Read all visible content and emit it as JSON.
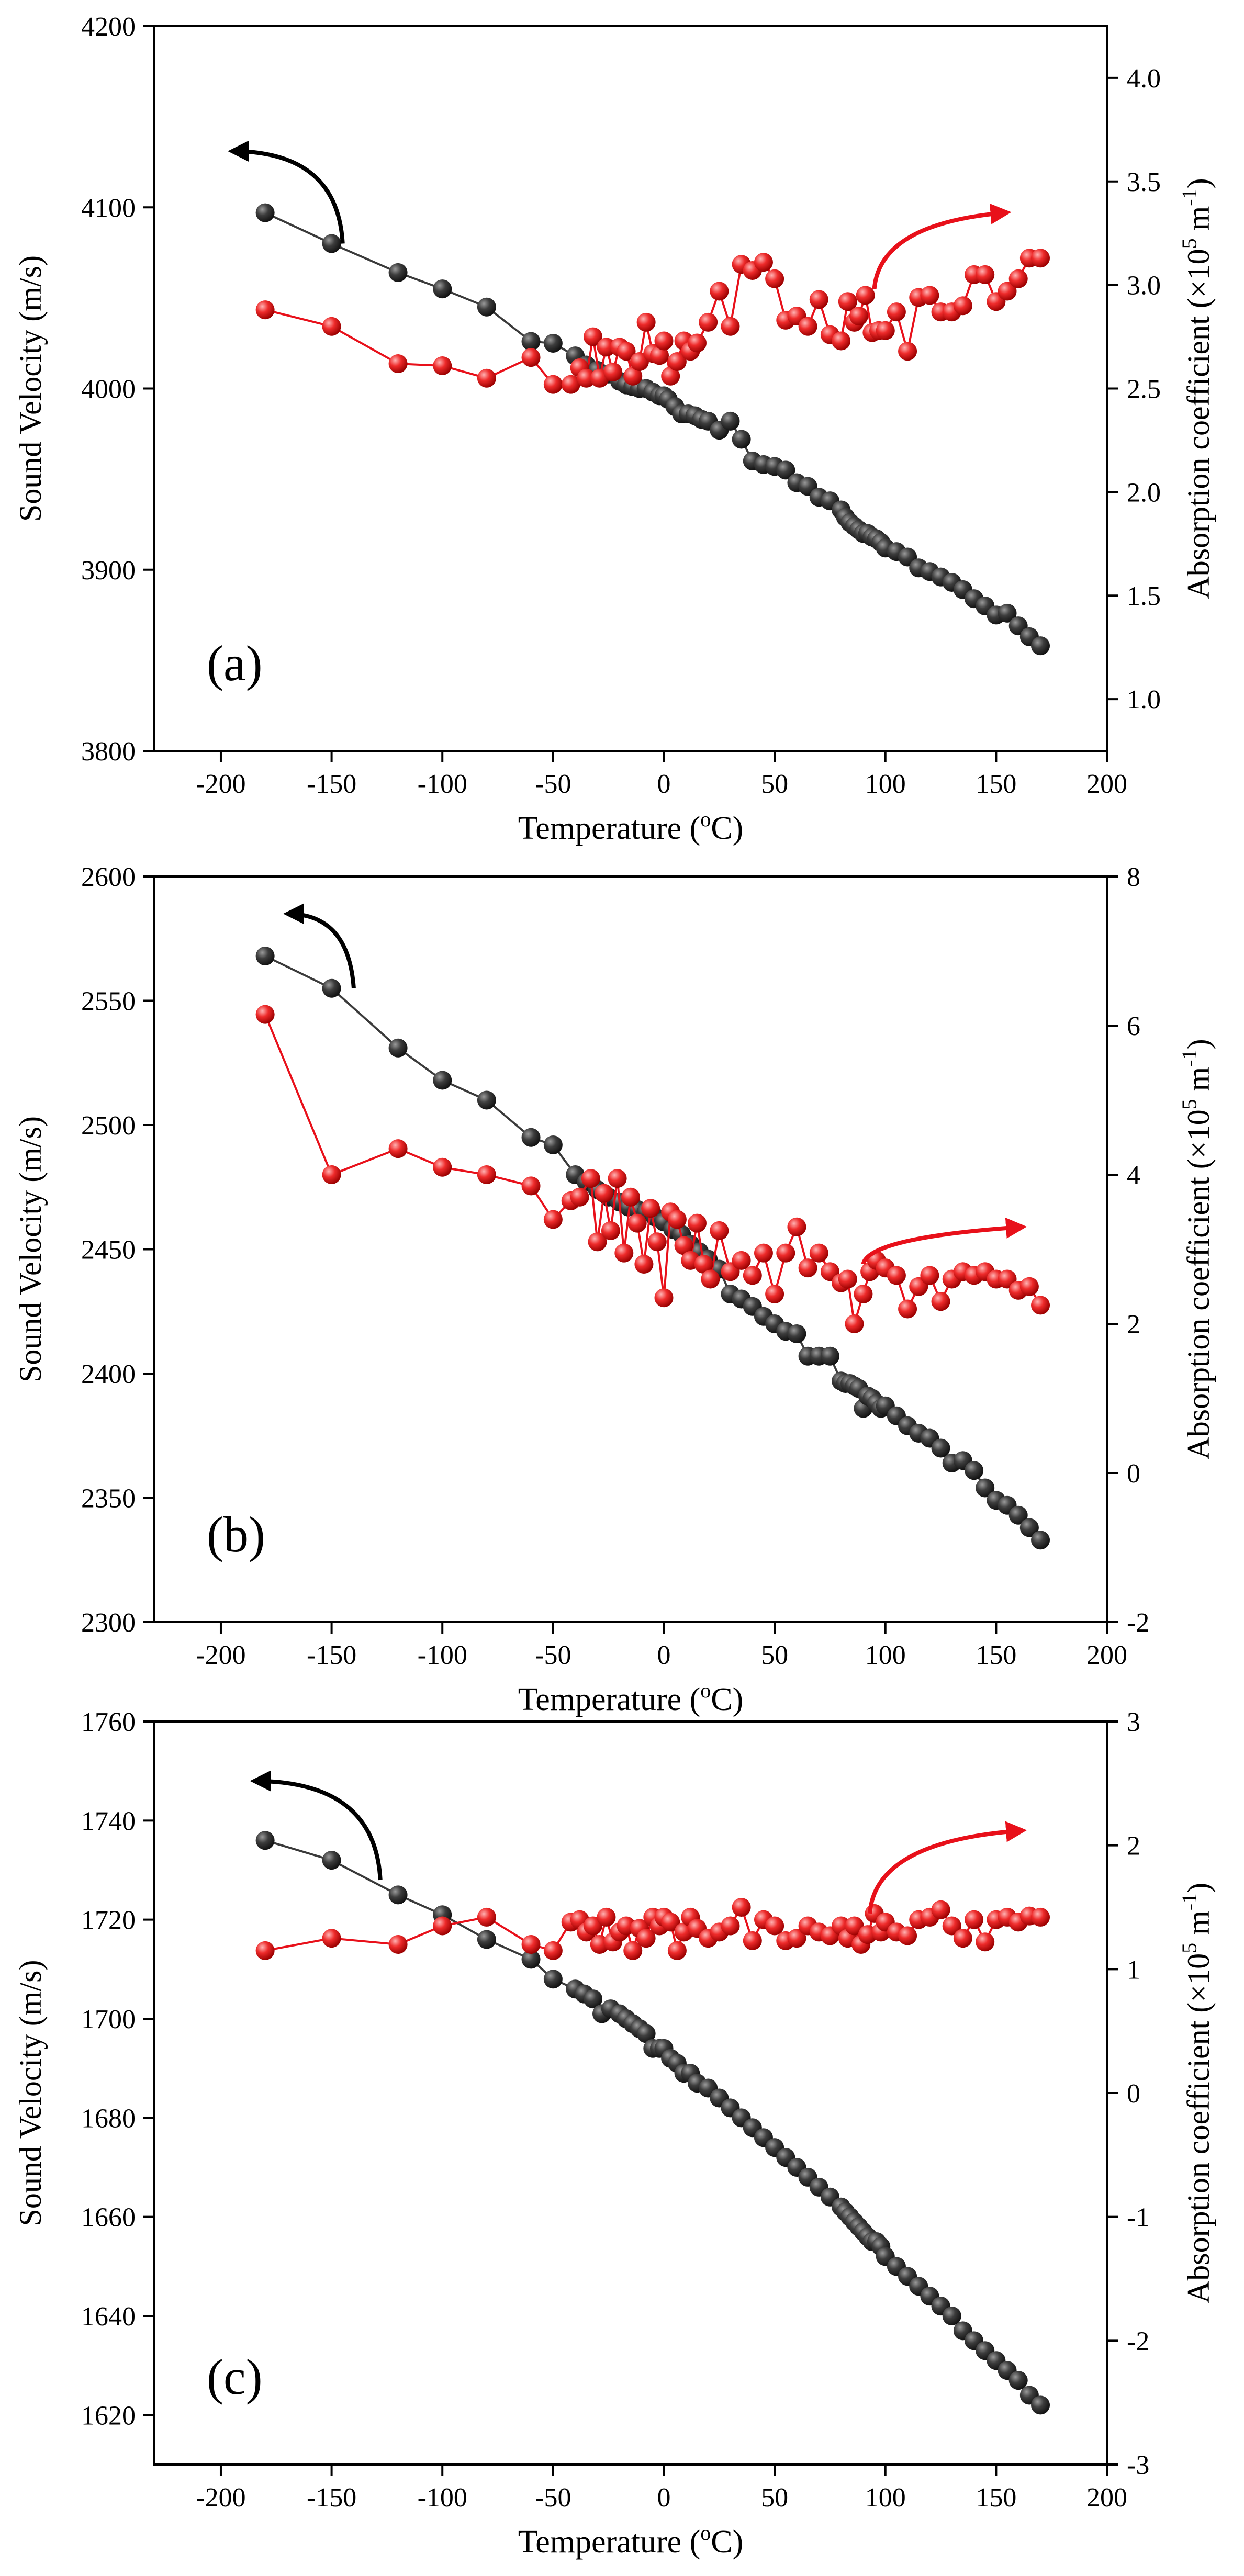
{
  "colors": {
    "velocity": "#3a3a3a",
    "absorption": "#e8101a",
    "axis": "#000000"
  },
  "chart_data": [
    {
      "type": "line",
      "panel_label": "(a)",
      "xlabel": "Temperature (",
      "xlabel_sup": "o",
      "xlabel_tail": "C)",
      "ylabel_left": "Sound Velocity (m/s)",
      "ylabel_right_pre": "Absorption coefficient (×10",
      "ylabel_right_sup1": "5",
      "ylabel_right_mid": " m",
      "ylabel_right_sup2": "-1",
      "ylabel_right_post": ")",
      "xlim": [
        -230,
        200
      ],
      "ylim_left": [
        3800,
        4200
      ],
      "ylim_right": [
        0.75,
        4.25
      ],
      "xticks": [
        -200,
        -150,
        -100,
        -50,
        0,
        50,
        100,
        150,
        200
      ],
      "yticks_left": [
        3800,
        3900,
        4000,
        4100,
        4200
      ],
      "yticks_right": [
        1.0,
        1.5,
        2.0,
        2.5,
        3.0,
        3.5,
        4.0
      ],
      "ytick_right_decimals": 1,
      "arrows": [
        {
          "series": "Sound Velocity",
          "direction": "left",
          "from": [
            -145,
            4080
          ],
          "to": [
            -195,
            4131
          ]
        },
        {
          "series": "Absorption coefficient",
          "direction": "right",
          "from": [
            95,
            2.98
          ],
          "to": [
            155,
            3.35
          ]
        }
      ],
      "series": [
        {
          "name": "Sound Velocity",
          "axis": "left",
          "x": [
            -180,
            -150,
            -120,
            -100,
            -80,
            -60,
            -50,
            -40,
            -35,
            -30,
            -25,
            -20,
            -17,
            -14,
            -11,
            -8,
            -5,
            -2,
            0,
            2,
            5,
            8,
            11,
            14,
            17,
            20,
            25,
            30,
            35,
            40,
            45,
            50,
            55,
            60,
            65,
            70,
            75,
            80,
            82,
            84,
            86,
            88,
            90,
            92,
            94,
            96,
            98,
            100,
            105,
            110,
            115,
            120,
            125,
            130,
            135,
            140,
            145,
            150,
            155,
            160,
            165,
            170
          ],
          "values": [
            4097,
            4080,
            4064,
            4055,
            4045,
            4026,
            4025,
            4018,
            4013,
            4010,
            4008,
            4004,
            4002,
            4001,
            4000,
            4000,
            3998,
            3996,
            3996,
            3994,
            3990,
            3986,
            3986,
            3985,
            3983,
            3982,
            3977,
            3982,
            3972,
            3960,
            3958,
            3957,
            3955,
            3948,
            3946,
            3940,
            3938,
            3933,
            3929,
            3926,
            3924,
            3922,
            3920,
            3920,
            3918,
            3917,
            3915,
            3912,
            3910,
            3907,
            3901,
            3899,
            3896,
            3893,
            3889,
            3884,
            3880,
            3875,
            3876,
            3869,
            3863,
            3858
          ]
        },
        {
          "name": "Absorption coefficient",
          "axis": "right",
          "x": [
            -180,
            -150,
            -120,
            -100,
            -80,
            -60,
            -50,
            -42,
            -38,
            -35,
            -32,
            -29,
            -26,
            -23,
            -20,
            -17,
            -14,
            -11,
            -8,
            -5,
            -2,
            0,
            3,
            6,
            9,
            12,
            15,
            20,
            25,
            30,
            35,
            40,
            45,
            50,
            55,
            60,
            65,
            70,
            75,
            80,
            83,
            86,
            88,
            91,
            94,
            97,
            100,
            105,
            110,
            115,
            120,
            125,
            130,
            135,
            140,
            145,
            150,
            155,
            160,
            165,
            170
          ],
          "values": [
            2.88,
            2.8,
            2.62,
            2.61,
            2.55,
            2.65,
            2.52,
            2.52,
            2.6,
            2.55,
            2.75,
            2.55,
            2.7,
            2.58,
            2.7,
            2.68,
            2.56,
            2.63,
            2.82,
            2.67,
            2.66,
            2.73,
            2.56,
            2.63,
            2.73,
            2.68,
            2.72,
            2.82,
            2.97,
            2.8,
            3.1,
            3.07,
            3.11,
            3.03,
            2.83,
            2.85,
            2.8,
            2.93,
            2.76,
            2.73,
            2.92,
            2.82,
            2.85,
            2.95,
            2.77,
            2.78,
            2.78,
            2.87,
            2.68,
            2.94,
            2.95,
            2.87,
            2.87,
            2.9,
            3.05,
            3.05,
            2.92,
            2.97,
            3.03,
            3.13,
            3.13
          ]
        }
      ]
    },
    {
      "type": "line",
      "panel_label": "(b)",
      "xlabel": "Temperature (",
      "xlabel_sup": "o",
      "xlabel_tail": "C)",
      "ylabel_left": "Sound Velocity (m/s)",
      "ylabel_right_pre": "Absorption coefficient (×10",
      "ylabel_right_sup1": "5",
      "ylabel_right_mid": " m",
      "ylabel_right_sup2": "-1",
      "ylabel_right_post": ")",
      "xlim": [
        -230,
        200
      ],
      "ylim_left": [
        2300,
        2600
      ],
      "ylim_right": [
        -2,
        8
      ],
      "xticks": [
        -200,
        -150,
        -100,
        -50,
        0,
        50,
        100,
        150,
        200
      ],
      "yticks_left": [
        2300,
        2350,
        2400,
        2450,
        2500,
        2550,
        2600
      ],
      "yticks_right": [
        -2,
        0,
        2,
        4,
        6,
        8
      ],
      "ytick_right_decimals": 0,
      "arrows": [
        {
          "series": "Sound Velocity",
          "direction": "left",
          "from": [
            -140,
            2555
          ],
          "to": [
            -170,
            2585
          ]
        },
        {
          "series": "Absorption coefficient",
          "direction": "right",
          "from": [
            90,
            2.8
          ],
          "to": [
            162,
            3.3
          ]
        }
      ],
      "series": [
        {
          "name": "Sound Velocity",
          "axis": "left",
          "x": [
            -180,
            -150,
            -120,
            -100,
            -80,
            -60,
            -50,
            -40,
            -35,
            -30,
            -25,
            -20,
            -16,
            -12,
            -8,
            -4,
            0,
            4,
            8,
            12,
            16,
            20,
            25,
            30,
            35,
            40,
            45,
            50,
            55,
            60,
            65,
            70,
            75,
            80,
            82,
            84,
            86,
            88,
            90,
            92,
            94,
            96,
            98,
            100,
            105,
            110,
            115,
            120,
            125,
            130,
            135,
            140,
            145,
            150,
            155,
            160,
            165,
            170
          ],
          "values": [
            2568,
            2555,
            2531,
            2518,
            2510,
            2495,
            2492,
            2480,
            2477,
            2474,
            2471,
            2469,
            2467,
            2466,
            2465,
            2463,
            2461,
            2458,
            2456,
            2452,
            2449,
            2446,
            2442,
            2432,
            2430,
            2427,
            2423,
            2420,
            2417,
            2416,
            2407,
            2407,
            2407,
            2397,
            2396,
            2396,
            2395,
            2394,
            2386,
            2391,
            2390,
            2388,
            2386,
            2387,
            2383,
            2379,
            2376,
            2374,
            2370,
            2364,
            2365,
            2361,
            2354,
            2349,
            2347,
            2343,
            2338,
            2333
          ]
        },
        {
          "name": "Absorption coefficient",
          "axis": "right",
          "x": [
            -180,
            -150,
            -120,
            -100,
            -80,
            -60,
            -50,
            -42,
            -38,
            -33,
            -30,
            -27,
            -24,
            -21,
            -18,
            -15,
            -12,
            -9,
            -6,
            -3,
            0,
            3,
            6,
            9,
            12,
            15,
            18,
            21,
            25,
            30,
            35,
            40,
            45,
            50,
            55,
            60,
            65,
            70,
            75,
            80,
            83,
            86,
            90,
            93,
            96,
            100,
            105,
            110,
            115,
            120,
            125,
            130,
            135,
            140,
            145,
            150,
            155,
            160,
            165,
            170
          ],
          "values": [
            6.15,
            4.0,
            4.35,
            4.1,
            4.0,
            3.85,
            3.4,
            3.65,
            3.7,
            3.95,
            3.1,
            3.75,
            3.25,
            3.95,
            2.95,
            3.7,
            3.35,
            2.8,
            3.55,
            3.1,
            2.35,
            3.5,
            3.4,
            3.05,
            2.85,
            3.35,
            2.8,
            2.6,
            3.25,
            2.7,
            2.85,
            2.65,
            2.95,
            2.4,
            2.95,
            3.3,
            2.75,
            2.95,
            2.7,
            2.55,
            2.6,
            2.0,
            2.4,
            2.7,
            2.85,
            2.75,
            2.65,
            2.2,
            2.5,
            2.65,
            2.3,
            2.6,
            2.7,
            2.65,
            2.7,
            2.6,
            2.6,
            2.45,
            2.5,
            2.25
          ]
        }
      ]
    },
    {
      "type": "line",
      "panel_label": "(c)",
      "xlabel": "Temperature (",
      "xlabel_sup": "o",
      "xlabel_tail": "C)",
      "ylabel_left": "Sound Velocity (m/s)",
      "ylabel_right_pre": "Absorption coefficient (×10",
      "ylabel_right_sup1": "5",
      "ylabel_right_mid": " m",
      "ylabel_right_sup2": "-1",
      "ylabel_right_post": ")",
      "xlim": [
        -230,
        200
      ],
      "ylim_left": [
        1610,
        1760
      ],
      "ylim_right": [
        -3,
        3
      ],
      "xticks": [
        -200,
        -150,
        -100,
        -50,
        0,
        50,
        100,
        150,
        200
      ],
      "yticks_left": [
        1620,
        1640,
        1660,
        1680,
        1700,
        1720,
        1740,
        1760
      ],
      "yticks_right": [
        -3,
        -2,
        -1,
        0,
        1,
        2,
        3
      ],
      "ytick_right_decimals": 0,
      "arrows": [
        {
          "series": "Sound Velocity",
          "direction": "left",
          "from": [
            -128,
            1728
          ],
          "to": [
            -185,
            1748
          ]
        },
        {
          "series": "Absorption coefficient",
          "direction": "right",
          "from": [
            93,
            1.45
          ],
          "to": [
            162,
            2.12
          ]
        }
      ],
      "series": [
        {
          "name": "Sound Velocity",
          "axis": "left",
          "x": [
            -180,
            -150,
            -120,
            -100,
            -80,
            -60,
            -50,
            -40,
            -36,
            -32,
            -28,
            -24,
            -20,
            -17,
            -14,
            -11,
            -8,
            -5,
            -2,
            0,
            3,
            6,
            9,
            12,
            15,
            20,
            25,
            30,
            35,
            40,
            45,
            50,
            55,
            60,
            65,
            70,
            75,
            80,
            82,
            84,
            86,
            88,
            90,
            92,
            94,
            96,
            98,
            100,
            105,
            110,
            115,
            120,
            125,
            130,
            135,
            140,
            145,
            150,
            155,
            160,
            165,
            170
          ],
          "values": [
            1736,
            1732,
            1725,
            1721,
            1716,
            1712,
            1708,
            1706,
            1705,
            1704,
            1701,
            1702,
            1701,
            1700,
            1699,
            1698,
            1697,
            1694,
            1694,
            1694,
            1692,
            1691,
            1689,
            1689,
            1687,
            1686,
            1684,
            1682,
            1680,
            1678,
            1676,
            1674,
            1672,
            1670,
            1668,
            1666,
            1664,
            1662,
            1661,
            1660,
            1659,
            1658,
            1657,
            1656,
            1655,
            1655,
            1654,
            1652,
            1650,
            1648,
            1646,
            1644,
            1642,
            1640,
            1637,
            1635,
            1633,
            1631,
            1629,
            1627,
            1624,
            1622
          ]
        },
        {
          "name": "Absorption coefficient",
          "axis": "right",
          "x": [
            -180,
            -150,
            -120,
            -100,
            -80,
            -60,
            -50,
            -42,
            -38,
            -35,
            -32,
            -29,
            -26,
            -23,
            -20,
            -17,
            -14,
            -11,
            -8,
            -5,
            -2,
            0,
            3,
            6,
            9,
            12,
            15,
            20,
            25,
            30,
            35,
            40,
            45,
            50,
            55,
            60,
            65,
            70,
            75,
            80,
            83,
            86,
            89,
            92,
            95,
            98,
            100,
            105,
            110,
            115,
            120,
            125,
            130,
            135,
            140,
            145,
            150,
            155,
            160,
            165,
            170
          ],
          "values": [
            1.15,
            1.25,
            1.2,
            1.35,
            1.42,
            1.2,
            1.15,
            1.38,
            1.4,
            1.3,
            1.35,
            1.2,
            1.42,
            1.22,
            1.3,
            1.35,
            1.15,
            1.33,
            1.25,
            1.42,
            1.35,
            1.42,
            1.38,
            1.15,
            1.3,
            1.42,
            1.33,
            1.25,
            1.3,
            1.35,
            1.5,
            1.23,
            1.4,
            1.35,
            1.23,
            1.25,
            1.35,
            1.3,
            1.27,
            1.35,
            1.25,
            1.35,
            1.2,
            1.28,
            1.45,
            1.3,
            1.38,
            1.3,
            1.27,
            1.4,
            1.42,
            1.48,
            1.35,
            1.25,
            1.4,
            1.22,
            1.4,
            1.42,
            1.38,
            1.43,
            1.42
          ]
        }
      ]
    }
  ]
}
